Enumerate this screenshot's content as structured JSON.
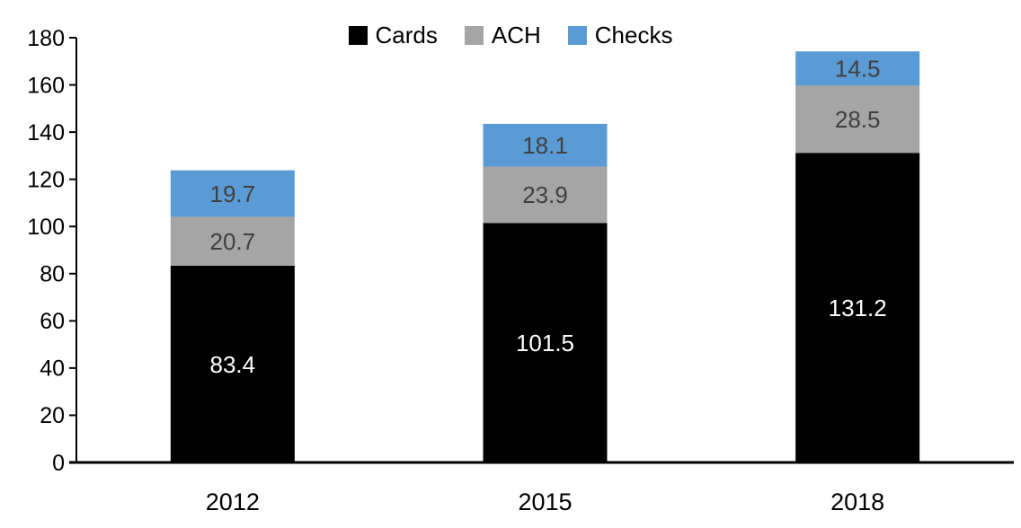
{
  "chart_data": {
    "type": "bar",
    "stacked": true,
    "title": "",
    "categories": [
      "2012",
      "2015",
      "2018"
    ],
    "series": [
      {
        "name": "Cards",
        "color": "#000000",
        "label_color": "#ffffff",
        "values": [
          83.4,
          101.5,
          131.2
        ]
      },
      {
        "name": "ACH",
        "color": "#A5A5A5",
        "label_color": "#404040",
        "values": [
          20.7,
          23.9,
          28.5
        ]
      },
      {
        "name": "Checks",
        "color": "#5B9BD5",
        "label_color": "#404040",
        "values": [
          19.7,
          18.1,
          14.5
        ]
      }
    ],
    "ylim": [
      0,
      180
    ],
    "ytick_step": 20,
    "yticks": [
      0,
      20,
      40,
      60,
      80,
      100,
      120,
      140,
      160,
      180
    ],
    "legend_position": "top-center",
    "grid": false,
    "value_labels": "inside-center",
    "axis_color": "#000000"
  }
}
